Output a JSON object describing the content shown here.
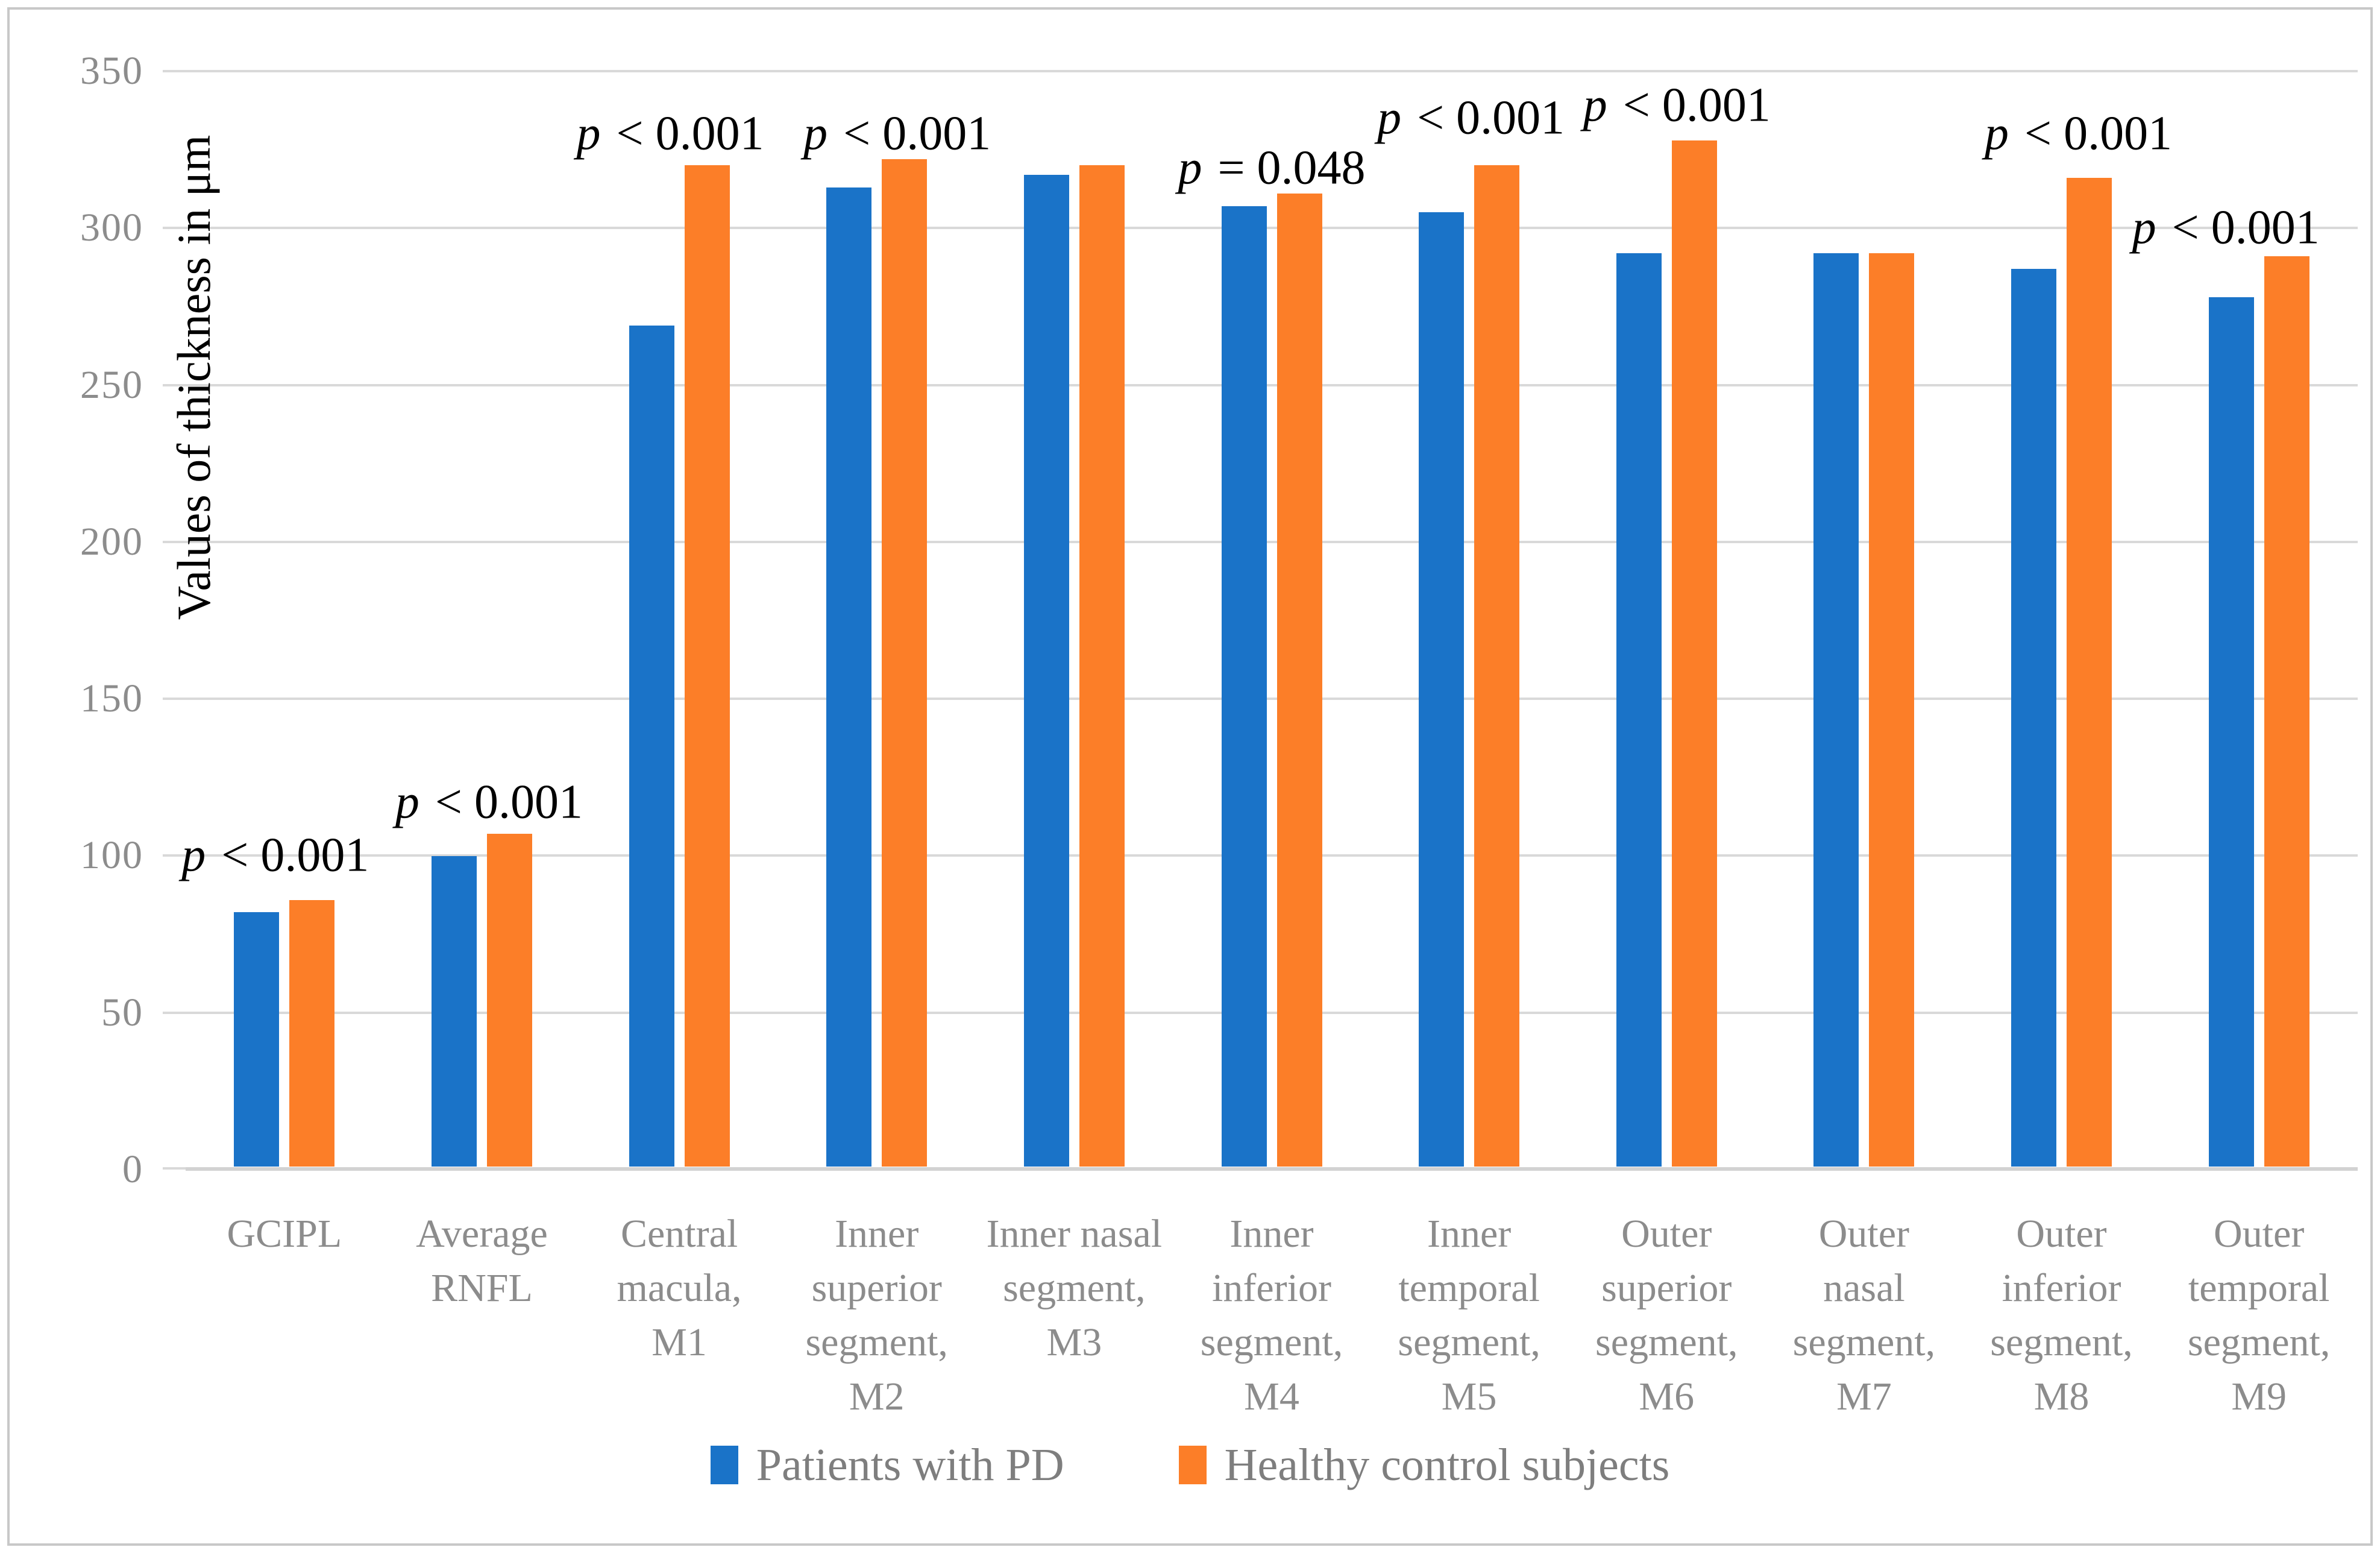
{
  "chart_data": {
    "type": "bar",
    "title": "",
    "ylabel": "Values of thickness in μm",
    "xlabel": "",
    "ylim": [
      0,
      350
    ],
    "ytick_step": 50,
    "yticks": [
      "0",
      "50",
      "100",
      "150",
      "200",
      "250",
      "300",
      "350"
    ],
    "grid": true,
    "legend_position": "bottom",
    "categories": [
      "GCIPL",
      "Average RNFL",
      "Central macula, M1",
      "Inner superior segment, M2",
      "Inner nasal segment, M3",
      "Inner inferior segment, M4",
      "Inner temporal segment, M5",
      "Outer superior segment, M6",
      "Outer nasal segment, M7",
      "Outer inferior segment, M8",
      "Outer temporal segment, M9"
    ],
    "category_lines": [
      [
        "GCIPL"
      ],
      [
        "Average",
        "RNFL"
      ],
      [
        "Central",
        "macula,",
        "M1"
      ],
      [
        "Inner",
        "superior",
        "segment,",
        "M2"
      ],
      [
        "Inner nasal",
        "segment,",
        "M3"
      ],
      [
        "Inner",
        "inferior",
        "segment,",
        "M4"
      ],
      [
        "Inner",
        "temporal",
        "segment,",
        "M5"
      ],
      [
        "Outer",
        "superior",
        "segment,",
        "M6"
      ],
      [
        "Outer",
        "nasal",
        "segment,",
        "M7"
      ],
      [
        "Outer",
        "inferior",
        "segment,",
        "M8"
      ],
      [
        "Outer",
        "temporal",
        "segment,",
        "M9"
      ]
    ],
    "series": [
      {
        "name": "Patients with PD",
        "color": "#1a73c8",
        "values": [
          81,
          99,
          268,
          312,
          316,
          306,
          304,
          291,
          291,
          286,
          277
        ]
      },
      {
        "name": "Healthy control subjects",
        "color": "#fc7e28",
        "values": [
          85,
          106,
          319,
          321,
          319,
          310,
          319,
          327,
          291,
          315,
          290
        ]
      }
    ],
    "annotations": [
      {
        "category_index": 0,
        "text": "p < 0.001",
        "y_value": 100,
        "dx": -15
      },
      {
        "category_index": 1,
        "text": "p < 0.001",
        "y_value": 117,
        "dx": 12
      },
      {
        "category_index": 2,
        "text": "p < 0.001",
        "y_value": 330,
        "dx": -15
      },
      {
        "category_index": 3,
        "text": "p < 0.001",
        "y_value": 330,
        "dx": 34
      },
      {
        "category_index": 5,
        "text": "p = 0.048",
        "y_value": 319,
        "dx": 0
      },
      {
        "category_index": 6,
        "text": "p < 0.001",
        "y_value": 335,
        "dx": 3
      },
      {
        "category_index": 7,
        "text": "p < 0.001",
        "y_value": 339,
        "dx": 17
      },
      {
        "category_index": 9,
        "text": "p < 0.001",
        "y_value": 330,
        "dx": 28
      },
      {
        "category_index": 10,
        "text": "p < 0.001",
        "y_value": 300,
        "dx": -55
      }
    ],
    "colors": {
      "grid": "#d9d9d9",
      "axis_line": "#d2d2d2",
      "tick_label": "#8c8c8c",
      "category_label": "#8c8c8c",
      "legend_label": "#7e7e7e",
      "annotation": "#000000",
      "frame": "#c8c8c8",
      "background": "#ffffff"
    }
  }
}
